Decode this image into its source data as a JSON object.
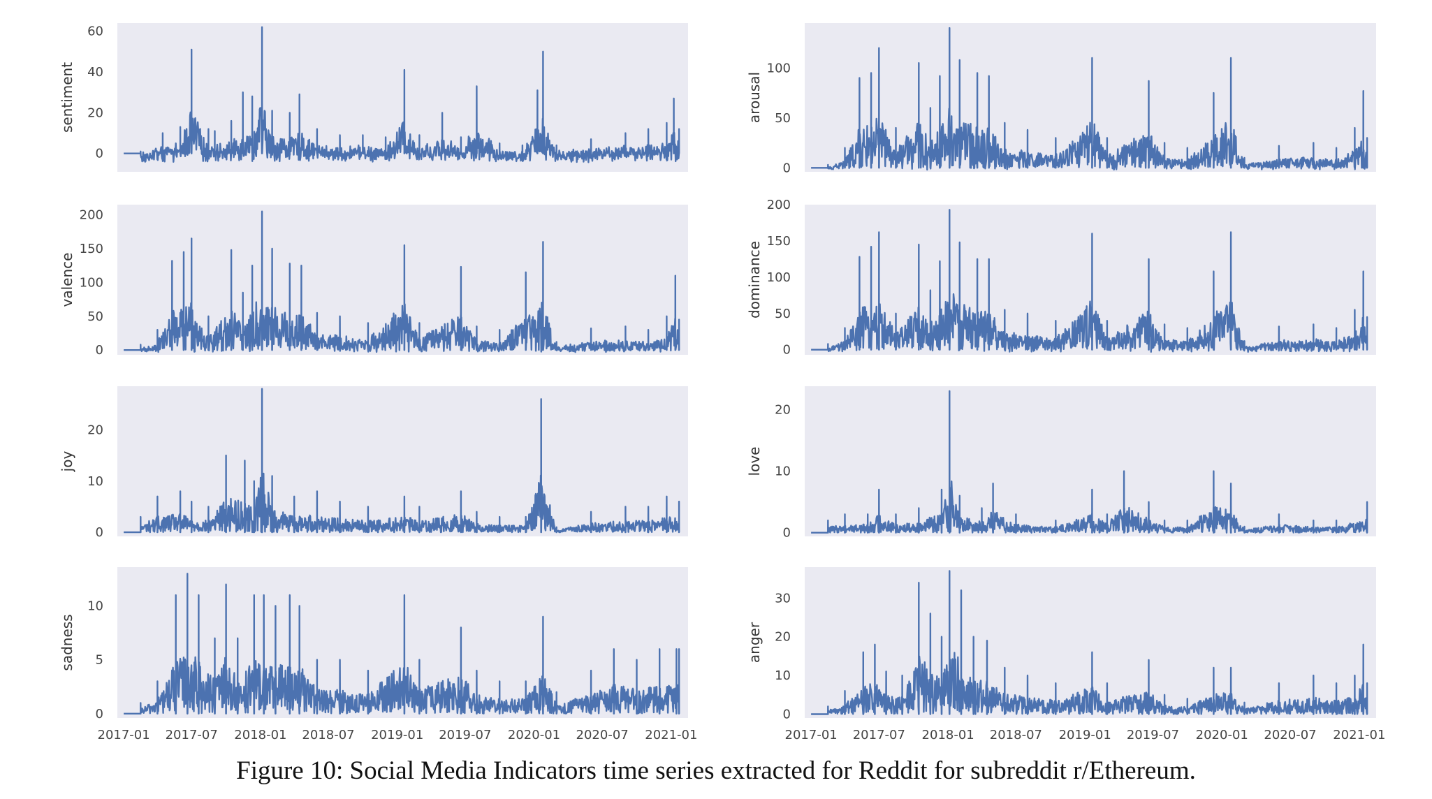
{
  "caption": "Figure 10: Social Media Indicators time series extracted for Reddit for subreddit r/Ethereum.",
  "colors": {
    "line": "#4c72b0",
    "panel_bg": "#eaeaf2",
    "tick_text": "#444444"
  },
  "x_axis": {
    "tick_labels": [
      "2017-01",
      "2017-07",
      "2018-01",
      "2018-07",
      "2019-01",
      "2019-07",
      "2020-01",
      "2020-07",
      "2021-01"
    ],
    "range": [
      "2016-12-15",
      "2021-02-15"
    ]
  },
  "chart_data": [
    {
      "type": "line",
      "ylabel": "sentiment",
      "ylim": [
        -9,
        64
      ],
      "yticks": [
        0,
        20,
        40,
        60
      ],
      "grid": false,
      "note": "series approximated from visual",
      "x": [
        "2017-01-01",
        "2017-02-15",
        "2017-04-15",
        "2017-06-01",
        "2017-07-01",
        "2017-08-15",
        "2017-09-01",
        "2017-10-15",
        "2017-11-15",
        "2017-12-10",
        "2018-01-05",
        "2018-02-01",
        "2018-03-20",
        "2018-04-15",
        "2018-06-01",
        "2018-08-01",
        "2018-10-01",
        "2018-12-01",
        "2019-01-20",
        "2019-03-01",
        "2019-05-01",
        "2019-06-20",
        "2019-08-01",
        "2019-10-01",
        "2019-12-01",
        "2020-01-10",
        "2020-01-25",
        "2020-03-01",
        "2020-06-01",
        "2020-09-01",
        "2020-11-01",
        "2020-12-20",
        "2021-01-08",
        "2021-01-22"
      ],
      "values": [
        0,
        1,
        10,
        13,
        51,
        12,
        11,
        16,
        30,
        28,
        62,
        21,
        20,
        29,
        12,
        9,
        9,
        8,
        41,
        9,
        20,
        8,
        33,
        5,
        4,
        31,
        50,
        4,
        7,
        10,
        12,
        15,
        27,
        12
      ]
    },
    {
      "type": "line",
      "ylabel": "arousal",
      "ylim": [
        -4,
        145
      ],
      "yticks": [
        0,
        50,
        100
      ],
      "grid": false,
      "note": "series approximated from visual",
      "x": [
        "2017-01-01",
        "2017-02-15",
        "2017-04-01",
        "2017-05-10",
        "2017-06-10",
        "2017-07-01",
        "2017-08-15",
        "2017-10-15",
        "2017-11-15",
        "2017-12-10",
        "2018-01-05",
        "2018-02-01",
        "2018-03-20",
        "2018-04-20",
        "2018-06-01",
        "2018-08-01",
        "2018-10-15",
        "2019-01-20",
        "2019-03-01",
        "2019-06-20",
        "2019-08-01",
        "2019-10-01",
        "2019-12-10",
        "2020-01-25",
        "2020-03-01",
        "2020-06-01",
        "2020-09-01",
        "2020-11-01",
        "2020-12-20",
        "2021-01-12",
        "2021-01-22"
      ],
      "values": [
        0,
        3,
        20,
        90,
        95,
        120,
        40,
        105,
        60,
        92,
        140,
        108,
        95,
        92,
        45,
        38,
        30,
        110,
        30,
        87,
        25,
        20,
        75,
        110,
        10,
        22,
        25,
        20,
        40,
        77,
        30
      ]
    },
    {
      "type": "line",
      "ylabel": "valence",
      "ylim": [
        -7,
        215
      ],
      "yticks": [
        0,
        50,
        100,
        150,
        200
      ],
      "grid": false,
      "note": "series approximated from visual",
      "x": [
        "2017-01-01",
        "2017-02-15",
        "2017-04-01",
        "2017-05-10",
        "2017-06-10",
        "2017-07-01",
        "2017-08-15",
        "2017-10-15",
        "2017-11-15",
        "2017-12-10",
        "2018-01-05",
        "2018-02-01",
        "2018-03-20",
        "2018-04-20",
        "2018-06-01",
        "2018-08-01",
        "2018-10-15",
        "2019-01-20",
        "2019-03-01",
        "2019-06-20",
        "2019-08-01",
        "2019-10-01",
        "2019-12-10",
        "2020-01-25",
        "2020-03-01",
        "2020-06-01",
        "2020-09-01",
        "2020-11-01",
        "2020-12-20",
        "2021-01-12",
        "2021-01-22"
      ],
      "values": [
        0,
        8,
        30,
        132,
        145,
        165,
        50,
        148,
        85,
        125,
        205,
        150,
        128,
        125,
        55,
        50,
        40,
        155,
        40,
        123,
        35,
        30,
        115,
        160,
        12,
        32,
        35,
        30,
        50,
        110,
        45
      ]
    },
    {
      "type": "line",
      "ylabel": "dominance",
      "ylim": [
        -7,
        200
      ],
      "yticks": [
        0,
        50,
        100,
        150,
        200
      ],
      "grid": false,
      "note": "series approximated from visual",
      "x": [
        "2017-01-01",
        "2017-02-15",
        "2017-04-01",
        "2017-05-10",
        "2017-06-10",
        "2017-07-01",
        "2017-08-15",
        "2017-10-15",
        "2017-11-15",
        "2017-12-10",
        "2018-01-05",
        "2018-02-01",
        "2018-03-20",
        "2018-04-20",
        "2018-06-01",
        "2018-08-01",
        "2018-10-15",
        "2019-01-20",
        "2019-03-01",
        "2019-06-20",
        "2019-08-01",
        "2019-10-01",
        "2019-12-10",
        "2020-01-25",
        "2020-03-01",
        "2020-06-01",
        "2020-09-01",
        "2020-11-01",
        "2020-12-20",
        "2021-01-12",
        "2021-01-22"
      ],
      "values": [
        0,
        8,
        30,
        128,
        142,
        162,
        50,
        145,
        82,
        122,
        193,
        148,
        125,
        125,
        55,
        50,
        40,
        160,
        40,
        125,
        35,
        30,
        108,
        162,
        12,
        32,
        35,
        30,
        55,
        108,
        45
      ]
    },
    {
      "type": "line",
      "ylabel": "joy",
      "ylim": [
        -0.8,
        28.5
      ],
      "yticks": [
        0,
        10,
        20
      ],
      "grid": false,
      "note": "series approximated from visual",
      "x": [
        "2017-01-01",
        "2017-02-15",
        "2017-04-01",
        "2017-06-01",
        "2017-07-01",
        "2017-08-15",
        "2017-10-01",
        "2017-11-20",
        "2017-12-15",
        "2018-01-05",
        "2018-02-01",
        "2018-04-01",
        "2018-06-01",
        "2018-08-01",
        "2018-10-15",
        "2019-01-20",
        "2019-03-01",
        "2019-06-20",
        "2019-08-01",
        "2019-10-01",
        "2019-12-10",
        "2020-01-20",
        "2020-03-01",
        "2020-06-01",
        "2020-09-01",
        "2020-11-01",
        "2020-12-20",
        "2021-01-22"
      ],
      "values": [
        0,
        3,
        7,
        8,
        6,
        5,
        15,
        14,
        10,
        28,
        11,
        7,
        8,
        6,
        5,
        7,
        5,
        8,
        4,
        3,
        3,
        26,
        1,
        4,
        5,
        5,
        7,
        6
      ]
    },
    {
      "type": "line",
      "ylabel": "love",
      "ylim": [
        -0.6,
        23.8
      ],
      "yticks": [
        0,
        10,
        20
      ],
      "grid": false,
      "note": "series approximated from visual",
      "x": [
        "2017-01-01",
        "2017-02-15",
        "2017-04-01",
        "2017-06-01",
        "2017-07-01",
        "2017-08-15",
        "2017-10-15",
        "2017-12-15",
        "2018-01-05",
        "2018-02-01",
        "2018-04-01",
        "2018-05-01",
        "2018-07-01",
        "2018-10-15",
        "2019-01-20",
        "2019-03-01",
        "2019-04-15",
        "2019-06-20",
        "2019-08-01",
        "2019-10-01",
        "2019-12-10",
        "2020-01-25",
        "2020-03-01",
        "2020-06-01",
        "2020-09-01",
        "2020-11-01",
        "2021-01-22"
      ],
      "values": [
        0,
        2,
        3,
        3,
        7,
        3,
        4,
        7,
        23,
        6,
        4,
        8,
        3,
        2,
        7,
        3,
        10,
        5,
        2,
        2,
        10,
        8,
        1,
        3,
        2,
        2,
        5
      ]
    },
    {
      "type": "line",
      "ylabel": "sadness",
      "ylim": [
        -0.4,
        13.6
      ],
      "yticks": [
        0,
        5,
        10
      ],
      "grid": false,
      "note": "series approximated from visual",
      "x": [
        "2017-01-01",
        "2017-02-15",
        "2017-04-01",
        "2017-05-20",
        "2017-06-20",
        "2017-07-20",
        "2017-09-01",
        "2017-10-01",
        "2017-11-01",
        "2017-12-15",
        "2018-01-10",
        "2018-02-10",
        "2018-03-20",
        "2018-04-15",
        "2018-06-01",
        "2018-08-01",
        "2018-10-15",
        "2019-01-20",
        "2019-03-01",
        "2019-06-20",
        "2019-08-01",
        "2019-10-01",
        "2019-12-10",
        "2020-01-25",
        "2020-03-01",
        "2020-06-01",
        "2020-08-01",
        "2020-10-01",
        "2020-12-01",
        "2021-01-15",
        "2021-01-22"
      ],
      "values": [
        0,
        1,
        3,
        11,
        13,
        11,
        7,
        12,
        7,
        11,
        11,
        10,
        11,
        10,
        5,
        5,
        4,
        11,
        5,
        8,
        4,
        3,
        3,
        9,
        2,
        4,
        6,
        5,
        6,
        6,
        6
      ]
    },
    {
      "type": "line",
      "ylabel": "anger",
      "ylim": [
        -1,
        38
      ],
      "yticks": [
        0,
        10,
        20,
        30
      ],
      "grid": false,
      "note": "series approximated from visual",
      "x": [
        "2017-01-01",
        "2017-02-15",
        "2017-04-01",
        "2017-05-20",
        "2017-06-20",
        "2017-07-20",
        "2017-09-01",
        "2017-10-15",
        "2017-11-15",
        "2017-12-15",
        "2018-01-05",
        "2018-02-05",
        "2018-03-10",
        "2018-04-15",
        "2018-06-01",
        "2018-08-01",
        "2018-10-15",
        "2019-01-20",
        "2019-03-01",
        "2019-06-20",
        "2019-08-01",
        "2019-10-01",
        "2019-12-10",
        "2020-01-25",
        "2020-03-01",
        "2020-06-01",
        "2020-09-01",
        "2020-11-01",
        "2020-12-20",
        "2021-01-12",
        "2021-01-22"
      ],
      "values": [
        0,
        2,
        6,
        16,
        18,
        11,
        10,
        34,
        26,
        20,
        37,
        32,
        20,
        19,
        12,
        10,
        8,
        16,
        8,
        14,
        5,
        4,
        12,
        12,
        3,
        8,
        10,
        8,
        10,
        18,
        8
      ]
    }
  ]
}
